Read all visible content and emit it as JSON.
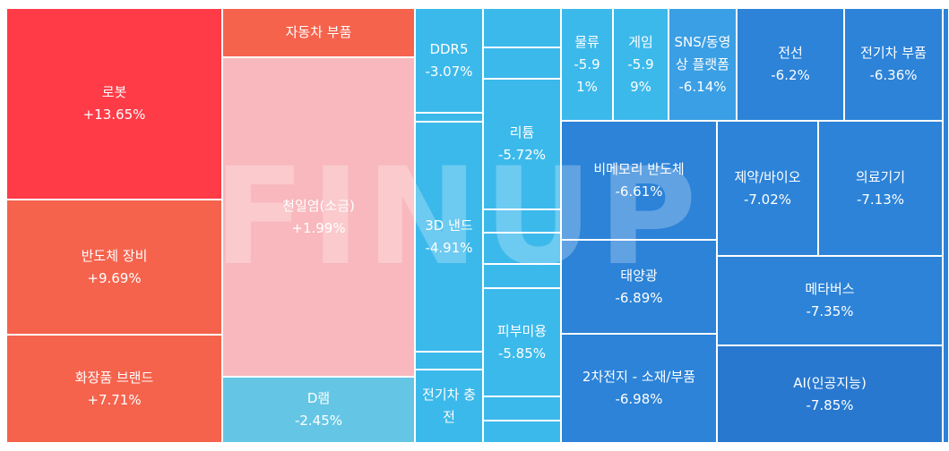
{
  "chart_data": {
    "type": "treemap",
    "watermark": "FINUP",
    "colors": {
      "up_strong": "#ff3b47",
      "up": "#f5634d",
      "up_light": "#f8b8bd",
      "mild_down": "#64c6e4",
      "down_light": "#3cb9eb",
      "down_mid": "#3a9fe4",
      "down": "#2c83d8",
      "down_strong": "#2878cf"
    },
    "tiles": [
      {
        "name": "로봇",
        "value": "+13.65%",
        "change": 13.65
      },
      {
        "name": "반도체 장비",
        "value": "+9.69%",
        "change": 9.69
      },
      {
        "name": "화장품 브랜드",
        "value": "+7.71%",
        "change": 7.71
      },
      {
        "name": "자동차 부품",
        "value": "",
        "change": null
      },
      {
        "name": "천일염(소금)",
        "value": "+1.99%",
        "change": 1.99
      },
      {
        "name": "D램",
        "value": "-2.45%",
        "change": -2.45
      },
      {
        "name": "DDR5",
        "value": "-3.07%",
        "change": -3.07
      },
      {
        "name": "3D 낸드",
        "value": "-4.91%",
        "change": -4.91
      },
      {
        "name": "전기차 충전",
        "value": "",
        "change": null
      },
      {
        "name": "리튬",
        "value": "-5.72%",
        "change": -5.72
      },
      {
        "name": "피부미용",
        "value": "-5.85%",
        "change": -5.85
      },
      {
        "name": "물류",
        "value": "-5.91%",
        "change": -5.91
      },
      {
        "name": "게임",
        "value": "-5.99%",
        "change": -5.99
      },
      {
        "name": "SNS/동영상 플랫폼",
        "value": "-6.14%",
        "change": -6.14
      },
      {
        "name": "전선",
        "value": "-6.2%",
        "change": -6.2
      },
      {
        "name": "전기차 부품",
        "value": "-6.36%",
        "change": -6.36
      },
      {
        "name": "비메모리 반도체",
        "value": "-6.61%",
        "change": -6.61
      },
      {
        "name": "제약/바이오",
        "value": "-7.02%",
        "change": -7.02
      },
      {
        "name": "의료기기",
        "value": "-7.13%",
        "change": -7.13
      },
      {
        "name": "태양광",
        "value": "-6.89%",
        "change": -6.89
      },
      {
        "name": "메타버스",
        "value": "-7.35%",
        "change": -7.35
      },
      {
        "name": "2차전지 - 소재/부품",
        "value": "-6.98%",
        "change": -6.98
      },
      {
        "name": "AI(인공지능)",
        "value": "-7.85%",
        "change": -7.85
      },
      {
        "name": "",
        "value": "",
        "change": null
      },
      {
        "name": "",
        "value": "",
        "change": null
      },
      {
        "name": "",
        "value": "",
        "change": null
      },
      {
        "name": "",
        "value": "",
        "change": null
      },
      {
        "name": "",
        "value": "",
        "change": null
      },
      {
        "name": "",
        "value": "",
        "change": null
      },
      {
        "name": "",
        "value": "",
        "change": null
      },
      {
        "name": "",
        "value": "",
        "change": null
      },
      {
        "name": "",
        "value": "",
        "change": null
      },
      {
        "name": "",
        "value": "",
        "change": null
      }
    ]
  }
}
